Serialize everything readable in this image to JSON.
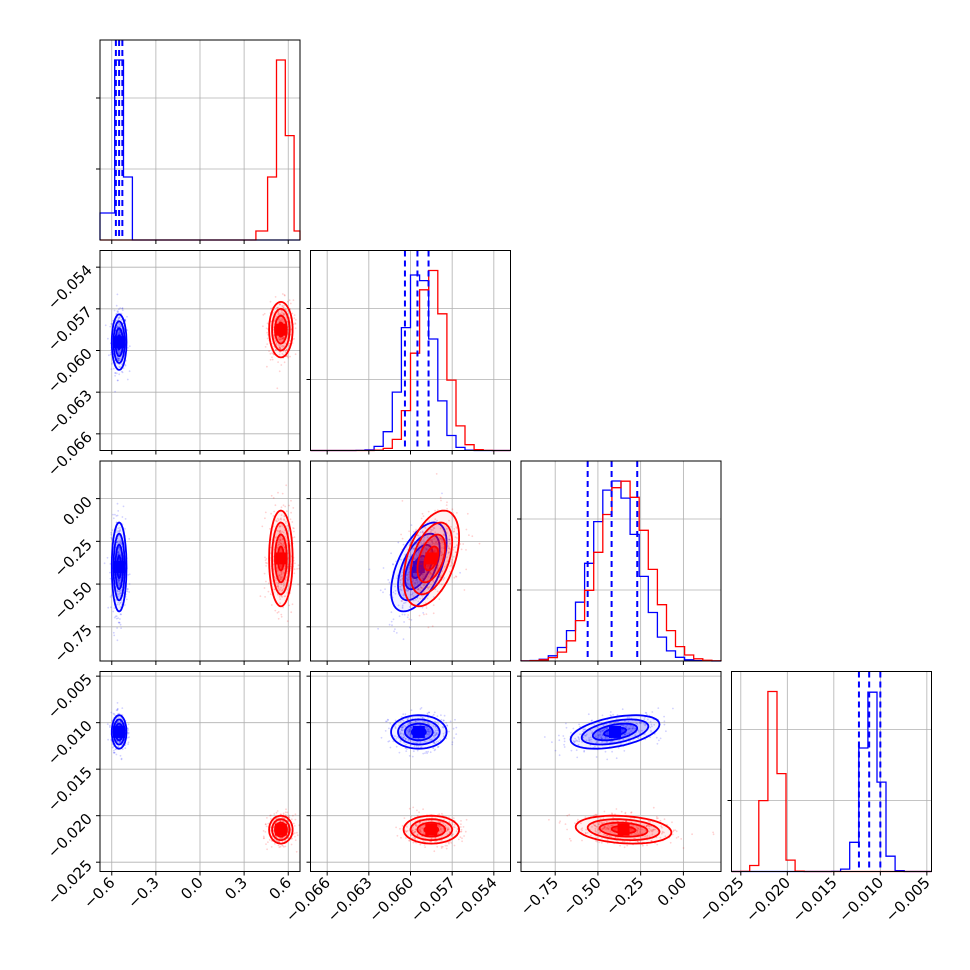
{
  "chart_data": {
    "type": "corner",
    "colors": {
      "blue": "#0000ff",
      "red": "#ff0000"
    },
    "grid": true,
    "parameters": [
      {
        "range": [
          -0.68,
          0.68
        ],
        "ticks": [
          "-0.6",
          "-0.3",
          "0.0",
          "0.3",
          "0.6"
        ],
        "tick_values": [
          -0.6,
          -0.3,
          0.0,
          0.3,
          0.6
        ]
      },
      {
        "range": [
          -0.0672,
          -0.0528
        ],
        "ticks": [
          "-0.066",
          "-0.063",
          "-0.060",
          "-0.057",
          "-0.054"
        ],
        "tick_values": [
          -0.066,
          -0.063,
          -0.06,
          -0.057,
          -0.054
        ]
      },
      {
        "range": [
          -0.95,
          0.22
        ],
        "ticks": [
          "-0.75",
          "-0.50",
          "-0.25",
          "0.00"
        ],
        "tick_values": [
          -0.75,
          -0.5,
          -0.25,
          0.0
        ]
      },
      {
        "range": [
          -0.026,
          -0.0045
        ],
        "ticks": [
          "-0.025",
          "-0.020",
          "-0.015",
          "-0.010",
          "-0.005"
        ],
        "tick_values": [
          -0.025,
          -0.02,
          -0.015,
          -0.01,
          -0.005
        ]
      }
    ],
    "series": [
      {
        "color": "blue",
        "means": [
          -0.55,
          -0.0594,
          -0.4,
          -0.011
        ],
        "sds": [
          0.025,
          0.001,
          0.13,
          0.0009
        ],
        "quantiles": [
          [
            -0.572,
            -0.55,
            -0.528
          ],
          [
            -0.0604,
            -0.0595,
            -0.0587
          ],
          [
            -0.56,
            -0.42,
            -0.27
          ],
          [
            -0.0123,
            -0.0112,
            -0.01
          ]
        ],
        "corr": {
          "1-2": 0.55,
          "2-3": 0.45,
          "1-3": 0.0
        }
      },
      {
        "color": "red",
        "means": [
          0.55,
          -0.0585,
          -0.35,
          -0.0215
        ],
        "sds": [
          0.04,
          0.001,
          0.14,
          0.00075
        ],
        "corr": {
          "1-2": 0.45,
          "2-3": -0.2,
          "1-3": 0.0
        }
      }
    ],
    "histograms": [
      {
        "param": 0,
        "edges": [
          -0.68,
          -0.58,
          -0.52,
          -0.46,
          0.38,
          0.46,
          0.52,
          0.58,
          0.64,
          0.68
        ],
        "blue": [
          1.5,
          10,
          3.5,
          0,
          0,
          0,
          0,
          0,
          0
        ],
        "red": [
          0,
          0,
          0,
          0,
          0.5,
          3.5,
          10,
          5.8,
          0.5
        ]
      }
    ]
  }
}
